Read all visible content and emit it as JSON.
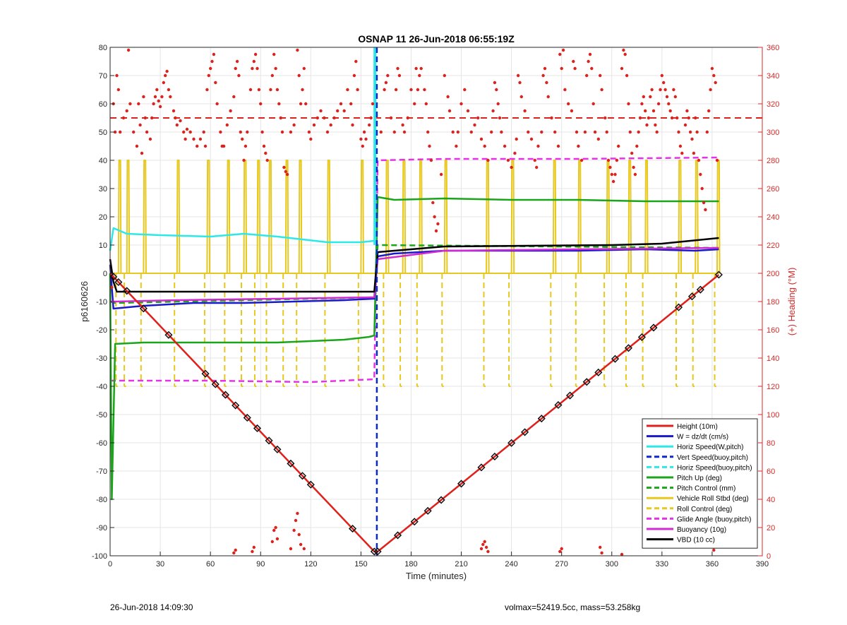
{
  "chart_data": {
    "type": "line",
    "title": "OSNAP 11 26-Jun-2018 06:55:19Z",
    "xlabel": "Time (minutes)",
    "ylabel_left": "p6160626",
    "ylabel_right": "(+) Heading (°M)",
    "xlim": [
      0,
      390
    ],
    "ylim_left": [
      -100,
      80
    ],
    "ylim_right": [
      0,
      360
    ],
    "grid": true,
    "legend_position": "bottom-right",
    "x_ticks": [
      0,
      30,
      60,
      90,
      120,
      150,
      180,
      210,
      240,
      270,
      300,
      330,
      360,
      390
    ],
    "y_ticks_left": [
      -100,
      -90,
      -80,
      -70,
      -60,
      -50,
      -40,
      -30,
      -20,
      -10,
      0,
      10,
      20,
      30,
      40,
      50,
      60,
      70,
      80
    ],
    "y_ticks_right": [
      0,
      20,
      40,
      60,
      80,
      100,
      120,
      140,
      160,
      180,
      200,
      220,
      240,
      260,
      280,
      300,
      320,
      340,
      360
    ],
    "colors": {
      "height": "#e0201b",
      "w": "#1a1acb",
      "horiz": "#2ee8e8",
      "vert_buoy": "#0a2ad0",
      "pitch": "#1aa51a",
      "roll": "#e6c81e",
      "glide": "#e632e6",
      "buoy": "#d22ad2",
      "vbd": "#000000",
      "heading": "#e0201b",
      "grid": "#e5e5e5",
      "axis": "#262626",
      "right_axis": "#d42a2a"
    },
    "series": [
      {
        "name": "Height (10m)",
        "style": "solid",
        "color": "#e0201b",
        "x": [
          0,
          158,
          160,
          364
        ],
        "values": [
          0,
          -98.5,
          -98.5,
          -0.5
        ]
      },
      {
        "name": "W = dz/dt (cm/s)",
        "style": "solid",
        "color": "#1a1acb",
        "x": [
          0,
          2,
          20,
          50,
          80,
          110,
          140,
          158,
          160,
          170,
          200,
          240,
          280,
          320,
          350,
          364
        ],
        "values": [
          3,
          -12.5,
          -11.5,
          -10.5,
          -10.5,
          -10,
          -9.5,
          -9,
          6,
          7,
          8,
          8,
          8,
          8.5,
          8,
          8.5
        ]
      },
      {
        "name": "Horiz Speed(W,pitch)",
        "style": "solid",
        "color": "#2ee8e8",
        "x": [
          0,
          2,
          10,
          30,
          60,
          80,
          100,
          130,
          150,
          158
        ],
        "values": [
          8,
          16,
          14,
          13.5,
          13,
          14,
          13,
          11,
          11,
          11.5
        ]
      },
      {
        "name": "Vert Speed(buoy,pitch)",
        "style": "dash",
        "color": "#0a2ad0",
        "x": [
          159.5,
          159.5
        ],
        "values": [
          80,
          -100
        ]
      },
      {
        "name": "Horiz Speed(buoy,pitch)",
        "style": "dash",
        "color": "#2ee8e8",
        "x": [
          158,
          158
        ],
        "values": [
          80,
          10
        ]
      },
      {
        "name": "Pitch Up (deg)",
        "style": "solid",
        "color": "#1aa51a",
        "x": [
          0,
          1,
          3,
          20,
          60,
          100,
          140,
          155,
          158,
          160,
          170,
          200,
          240,
          280,
          320,
          364
        ],
        "values": [
          0,
          -80,
          -25,
          -24.5,
          -24.5,
          -24.5,
          -23.5,
          -22.5,
          -22,
          27,
          26,
          26.5,
          26,
          26,
          25.5,
          25.5
        ]
      },
      {
        "name": "Pitch Control (mm)",
        "style": "dash",
        "color": "#1aa51a",
        "x": [
          0,
          3,
          158,
          160,
          364
        ],
        "values": [
          -10,
          -10.5,
          -8.5,
          10,
          9
        ]
      },
      {
        "name": "Vehicle Roll Stbd (deg)",
        "style": "solid",
        "color": "#e6c81e",
        "x": [
          0,
          158,
          160,
          364
        ],
        "values": [
          0,
          0,
          0,
          0
        ]
      },
      {
        "name": "Roll Control (deg)",
        "style": "dash",
        "color": "#e6c81e",
        "x": [
          0,
          364
        ],
        "values": [
          0,
          0
        ]
      },
      {
        "name": "Glide Angle (buoy,pitch)",
        "style": "dash",
        "color": "#e632e6",
        "x": [
          0,
          3,
          60,
          120,
          158,
          160,
          200,
          280,
          364
        ],
        "values": [
          -38,
          -38,
          -38,
          -38.5,
          -37.5,
          40,
          40.5,
          40.5,
          41
        ]
      },
      {
        "name": "Buoyancy (10g)",
        "style": "solid",
        "color": "#d22ad2",
        "x": [
          0,
          3,
          40,
          100,
          158,
          160,
          200,
          280,
          364
        ],
        "values": [
          -10,
          -10,
          -9.5,
          -9,
          -8.5,
          5,
          8,
          8.5,
          9
        ]
      },
      {
        "name": "VBD (10 cc)",
        "style": "solid",
        "color": "#000000",
        "x": [
          0,
          2,
          4,
          158,
          160,
          200,
          300,
          330,
          364
        ],
        "values": [
          5,
          -3,
          -6.5,
          -6.5,
          7.5,
          9.5,
          10,
          10.5,
          12.5
        ]
      }
    ],
    "roll_spikes_dive": [
      5,
      10,
      20,
      40,
      58,
      70,
      80,
      88,
      95,
      105,
      113,
      130,
      150
    ],
    "roll_spikes_climb": [
      165,
      175,
      185,
      200,
      225,
      240,
      265,
      280,
      297,
      310,
      320,
      340,
      350,
      363
    ],
    "markers_height": [
      2,
      5,
      10,
      20,
      35,
      57,
      63,
      69,
      75,
      82,
      88,
      95,
      100,
      108,
      115,
      120,
      145,
      158,
      160,
      172,
      182,
      190,
      198,
      210,
      222,
      230,
      240,
      248,
      258,
      268,
      275,
      285,
      292,
      302,
      310,
      318,
      325,
      340,
      348,
      353,
      364
    ],
    "heading_reference_deg": 310,
    "heading_points": [
      [
        1,
        190
      ],
      [
        2,
        320
      ],
      [
        3,
        300
      ],
      [
        4,
        340
      ],
      [
        5,
        330
      ],
      [
        6,
        300
      ],
      [
        8,
        310
      ],
      [
        10,
        315
      ],
      [
        11,
        358
      ],
      [
        12,
        320
      ],
      [
        14,
        300
      ],
      [
        16,
        290
      ],
      [
        17,
        320
      ],
      [
        18,
        305
      ],
      [
        19,
        285
      ],
      [
        20,
        325
      ],
      [
        21,
        310
      ],
      [
        22,
        300
      ],
      [
        24,
        295
      ],
      [
        25,
        310
      ],
      [
        26,
        320
      ],
      [
        27,
        325
      ],
      [
        28,
        330
      ],
      [
        29,
        322
      ],
      [
        30,
        318
      ],
      [
        31,
        325
      ],
      [
        32,
        335
      ],
      [
        33,
        340
      ],
      [
        34,
        343
      ],
      [
        35,
        330
      ],
      [
        36,
        325
      ],
      [
        38,
        315
      ],
      [
        39,
        310
      ],
      [
        40,
        305
      ],
      [
        42,
        308
      ],
      [
        44,
        300
      ],
      [
        45,
        295
      ],
      [
        46,
        302
      ],
      [
        48,
        300
      ],
      [
        50,
        295
      ],
      [
        52,
        290
      ],
      [
        54,
        295
      ],
      [
        56,
        300
      ],
      [
        57,
        290
      ],
      [
        58,
        330
      ],
      [
        59,
        340
      ],
      [
        60,
        345
      ],
      [
        61,
        350
      ],
      [
        62,
        355
      ],
      [
        63,
        335
      ],
      [
        64,
        320
      ],
      [
        66,
        300
      ],
      [
        67,
        290
      ],
      [
        68,
        290
      ],
      [
        70,
        305
      ],
      [
        72,
        315
      ],
      [
        74,
        325
      ],
      [
        75,
        345
      ],
      [
        76,
        350
      ],
      [
        77,
        340
      ],
      [
        78,
        300
      ],
      [
        79,
        295
      ],
      [
        80,
        280
      ],
      [
        81,
        290
      ],
      [
        82,
        300
      ],
      [
        84,
        330
      ],
      [
        85,
        345
      ],
      [
        86,
        350
      ],
      [
        87,
        355
      ],
      [
        88,
        345
      ],
      [
        89,
        330
      ],
      [
        90,
        320
      ],
      [
        91,
        300
      ],
      [
        92,
        290
      ],
      [
        93,
        285
      ],
      [
        94,
        280
      ],
      [
        96,
        330
      ],
      [
        97,
        340
      ],
      [
        98,
        355
      ],
      [
        99,
        345
      ],
      [
        100,
        330
      ],
      [
        101,
        320
      ],
      [
        102,
        310
      ],
      [
        103,
        300
      ],
      [
        104,
        275
      ],
      [
        105,
        272
      ],
      [
        106,
        270
      ],
      [
        108,
        300
      ],
      [
        110,
        305
      ],
      [
        112,
        358
      ],
      [
        113,
        340
      ],
      [
        114,
        320
      ],
      [
        115,
        330
      ],
      [
        116,
        345
      ],
      [
        117,
        320
      ],
      [
        119,
        300
      ],
      [
        120,
        295
      ],
      [
        122,
        305
      ],
      [
        124,
        310
      ],
      [
        126,
        315
      ],
      [
        128,
        310
      ],
      [
        130,
        300
      ],
      [
        132,
        305
      ],
      [
        134,
        310
      ],
      [
        136,
        315
      ],
      [
        138,
        320
      ],
      [
        140,
        315
      ],
      [
        142,
        330
      ],
      [
        144,
        320
      ],
      [
        145,
        305
      ],
      [
        146,
        340
      ],
      [
        147,
        350
      ],
      [
        148,
        330
      ],
      [
        150,
        295
      ],
      [
        151,
        290
      ],
      [
        152,
        300
      ],
      [
        153,
        295
      ],
      [
        155,
        305
      ],
      [
        156,
        310
      ],
      [
        157,
        320
      ],
      [
        162,
        300
      ],
      [
        164,
        330
      ],
      [
        165,
        335
      ],
      [
        166,
        340
      ],
      [
        168,
        310
      ],
      [
        170,
        300
      ],
      [
        171,
        330
      ],
      [
        172,
        345
      ],
      [
        173,
        340
      ],
      [
        175,
        305
      ],
      [
        176,
        300
      ],
      [
        178,
        310
      ],
      [
        180,
        330
      ],
      [
        182,
        320
      ],
      [
        183,
        345
      ],
      [
        184,
        330
      ],
      [
        185,
        340
      ],
      [
        186,
        345
      ],
      [
        188,
        330
      ],
      [
        189,
        320
      ],
      [
        190,
        300
      ],
      [
        191,
        290
      ],
      [
        192,
        280
      ],
      [
        193,
        250
      ],
      [
        194,
        240
      ],
      [
        195,
        230
      ],
      [
        196,
        235
      ],
      [
        198,
        270
      ],
      [
        200,
        340
      ],
      [
        202,
        325
      ],
      [
        203,
        315
      ],
      [
        205,
        300
      ],
      [
        207,
        290
      ],
      [
        208,
        300
      ],
      [
        210,
        320
      ],
      [
        212,
        330
      ],
      [
        214,
        315
      ],
      [
        216,
        300
      ],
      [
        218,
        305
      ],
      [
        220,
        310
      ],
      [
        222,
        295
      ],
      [
        224,
        290
      ],
      [
        226,
        280
      ],
      [
        228,
        300
      ],
      [
        229,
        315
      ],
      [
        230,
        335
      ],
      [
        231,
        330
      ],
      [
        232,
        320
      ],
      [
        233,
        310
      ],
      [
        234,
        300
      ],
      [
        236,
        290
      ],
      [
        238,
        280
      ],
      [
        240,
        275
      ],
      [
        242,
        285
      ],
      [
        243,
        295
      ],
      [
        244,
        340
      ],
      [
        245,
        335
      ],
      [
        246,
        325
      ],
      [
        248,
        315
      ],
      [
        250,
        300
      ],
      [
        252,
        295
      ],
      [
        254,
        280
      ],
      [
        255,
        275
      ],
      [
        256,
        290
      ],
      [
        258,
        300
      ],
      [
        259,
        340
      ],
      [
        260,
        345
      ],
      [
        261,
        335
      ],
      [
        262,
        325
      ],
      [
        264,
        310
      ],
      [
        266,
        300
      ],
      [
        268,
        290
      ],
      [
        269,
        355
      ],
      [
        270,
        345
      ],
      [
        271,
        358
      ],
      [
        272,
        330
      ],
      [
        274,
        320
      ],
      [
        276,
        315
      ],
      [
        277,
        350
      ],
      [
        278,
        345
      ],
      [
        279,
        300
      ],
      [
        280,
        290
      ],
      [
        282,
        280
      ],
      [
        284,
        300
      ],
      [
        285,
        340
      ],
      [
        286,
        350
      ],
      [
        287,
        355
      ],
      [
        288,
        345
      ],
      [
        289,
        320
      ],
      [
        290,
        300
      ],
      [
        292,
        295
      ],
      [
        293,
        340
      ],
      [
        294,
        330
      ],
      [
        296,
        310
      ],
      [
        297,
        300
      ],
      [
        298,
        280
      ],
      [
        299,
        275
      ],
      [
        300,
        270
      ],
      [
        301,
        265
      ],
      [
        302,
        270
      ],
      [
        303,
        280
      ],
      [
        304,
        290
      ],
      [
        306,
        345
      ],
      [
        307,
        358
      ],
      [
        308,
        355
      ],
      [
        309,
        340
      ],
      [
        310,
        320
      ],
      [
        311,
        300
      ],
      [
        312,
        285
      ],
      [
        313,
        275
      ],
      [
        314,
        270
      ],
      [
        315,
        290
      ],
      [
        316,
        300
      ],
      [
        317,
        310
      ],
      [
        318,
        320
      ],
      [
        319,
        325
      ],
      [
        320,
        315
      ],
      [
        321,
        305
      ],
      [
        322,
        310
      ],
      [
        323,
        325
      ],
      [
        324,
        330
      ],
      [
        325,
        315
      ],
      [
        326,
        305
      ],
      [
        327,
        300
      ],
      [
        328,
        320
      ],
      [
        329,
        330
      ],
      [
        330,
        340
      ],
      [
        331,
        335
      ],
      [
        332,
        330
      ],
      [
        333,
        325
      ],
      [
        334,
        320
      ],
      [
        335,
        315
      ],
      [
        336,
        310
      ],
      [
        337,
        330
      ],
      [
        338,
        325
      ],
      [
        339,
        310
      ],
      [
        340,
        300
      ],
      [
        341,
        290
      ],
      [
        342,
        285
      ],
      [
        344,
        305
      ],
      [
        345,
        315
      ],
      [
        346,
        310
      ],
      [
        347,
        300
      ],
      [
        348,
        295
      ],
      [
        349,
        285
      ],
      [
        350,
        310
      ],
      [
        351,
        300
      ],
      [
        352,
        280
      ],
      [
        353,
        270
      ],
      [
        354,
        260
      ],
      [
        355,
        250
      ],
      [
        356,
        245
      ],
      [
        357,
        300
      ],
      [
        358,
        315
      ],
      [
        359,
        330
      ],
      [
        360,
        345
      ],
      [
        361,
        340
      ],
      [
        362,
        335
      ],
      [
        363,
        280
      ]
    ],
    "heading_low_points": [
      [
        74,
        2
      ],
      [
        75,
        4
      ],
      [
        85,
        3
      ],
      [
        86,
        6
      ],
      [
        97,
        10
      ],
      [
        98,
        18
      ],
      [
        99,
        20
      ],
      [
        100,
        12
      ],
      [
        108,
        5
      ],
      [
        110,
        18
      ],
      [
        111,
        25
      ],
      [
        112,
        30
      ],
      [
        113,
        15
      ],
      [
        114,
        8
      ],
      [
        116,
        5
      ],
      [
        222,
        5
      ],
      [
        223,
        8
      ],
      [
        224,
        10
      ],
      [
        225,
        6
      ],
      [
        226,
        3
      ],
      [
        269,
        3
      ],
      [
        270,
        5
      ],
      [
        293,
        6
      ],
      [
        294,
        2
      ],
      [
        306,
        1
      ],
      [
        361,
        4
      ]
    ]
  },
  "footer": {
    "left": "26-Jun-2018 14:09:30",
    "right": "volmax=52419.5cc, mass=53.258kg"
  }
}
